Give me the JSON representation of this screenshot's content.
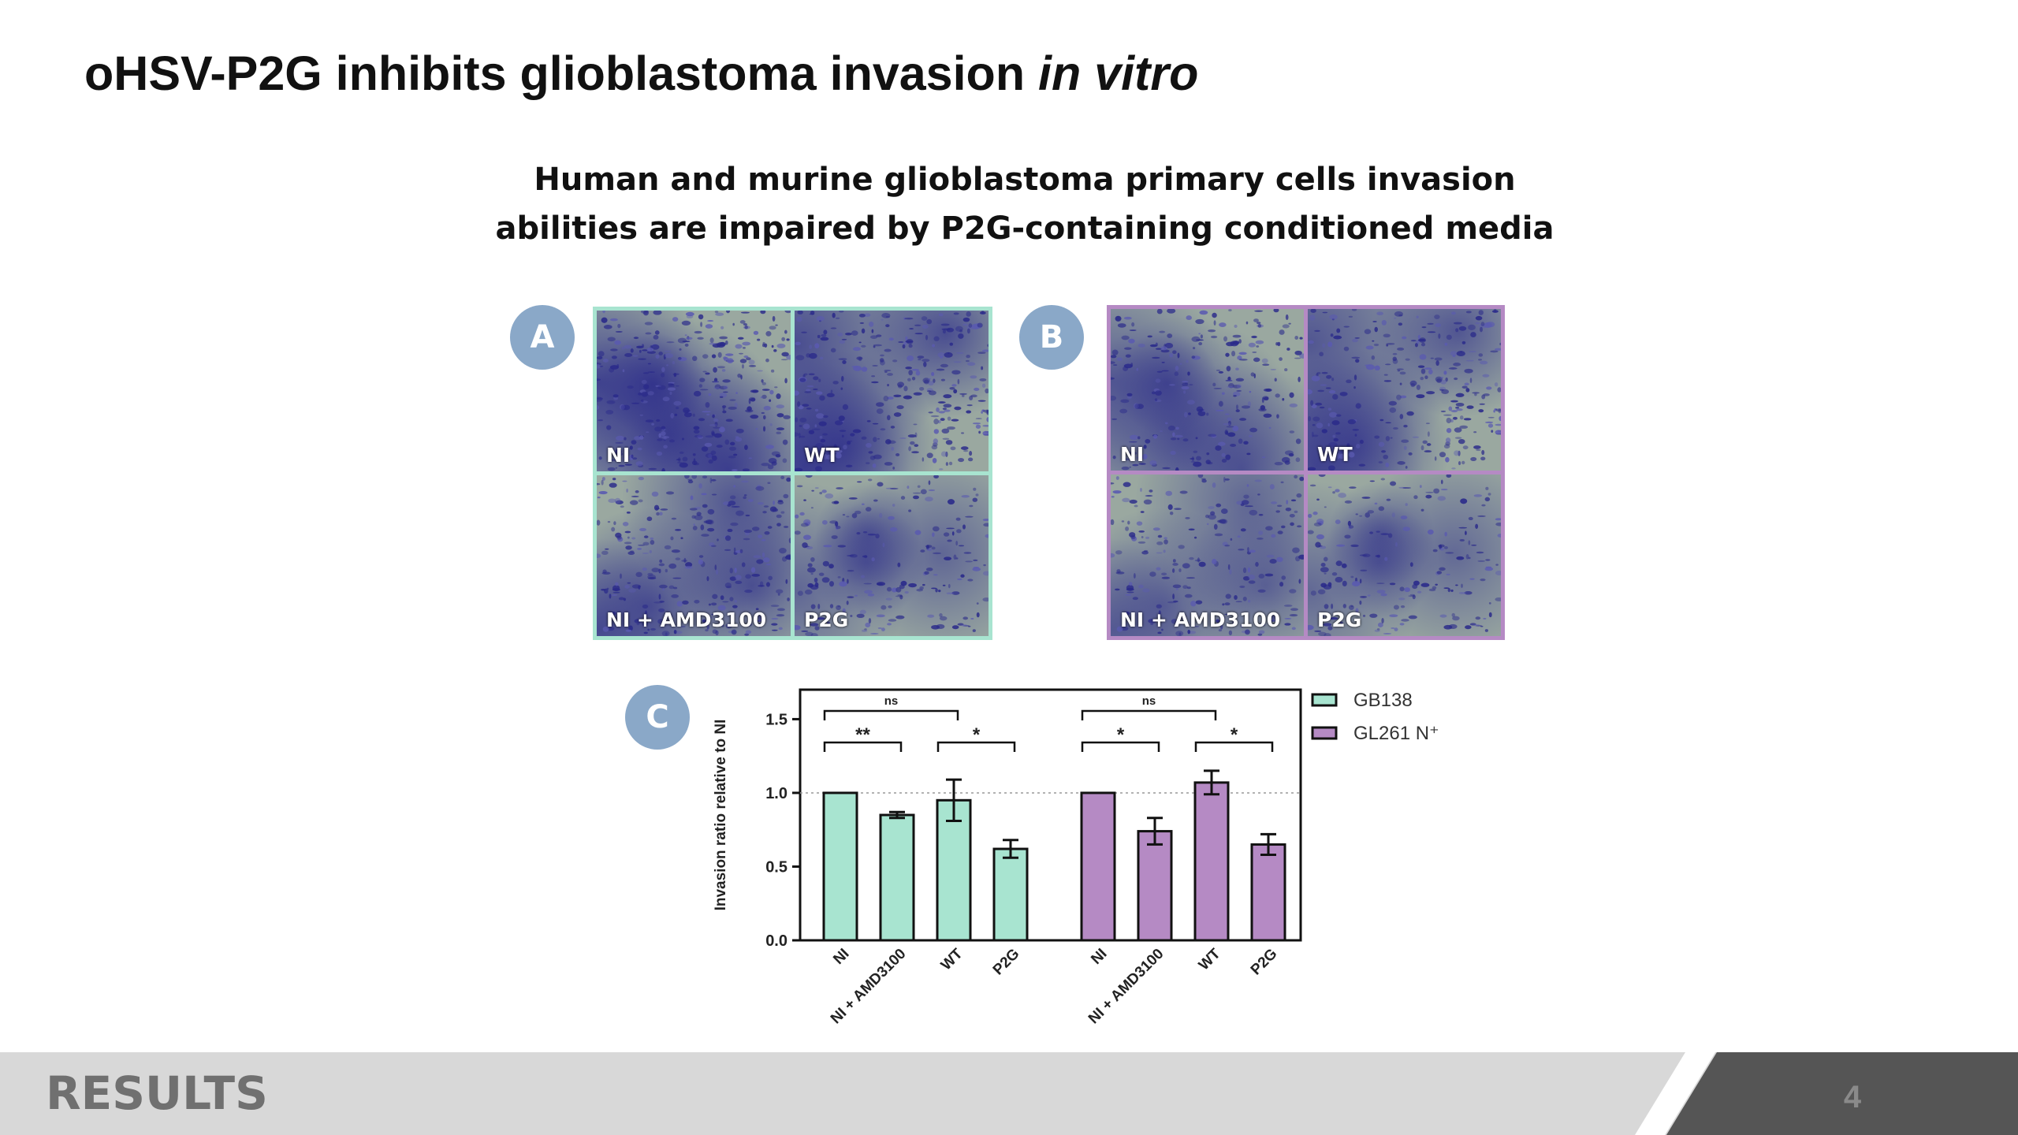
{
  "slide": {
    "title_main": "oHSV-P2G inhibits glioblastoma invasion ",
    "title_italic": "in vitro",
    "subtitle_line1": "Human and murine glioblastoma primary cells invasion",
    "subtitle_line2": "abilities are impaired by P2G-containing conditioned media",
    "footer_label": "RESULTS",
    "page_number": "4"
  },
  "panel_a": {
    "badge": "A",
    "frame_color": "#a8e4d0",
    "images": [
      {
        "label": "NI",
        "density": 0.85
      },
      {
        "label": "WT",
        "density": 0.75
      },
      {
        "label": "NI + AMD3100",
        "density": 0.62
      },
      {
        "label": "P2G",
        "density": 0.35
      }
    ]
  },
  "panel_b": {
    "badge": "B",
    "frame_color": "#b58ac4",
    "images": [
      {
        "label": "NI",
        "density": 0.5
      },
      {
        "label": "WT",
        "density": 0.6
      },
      {
        "label": "NI + AMD3100",
        "density": 0.35
      },
      {
        "label": "P2G",
        "density": 0.3
      }
    ]
  },
  "panel_c": {
    "badge": "C"
  },
  "colors": {
    "gb138": "#a8e4d0",
    "gl261": "#b58ac4",
    "badge": "#8aa8c8",
    "footer_light": "#d8d8d8",
    "footer_dark": "#555555",
    "stain_dark": "#2a2a8a",
    "stain_light": "#9aa8a0"
  },
  "chart_data": {
    "type": "bar",
    "title": "",
    "xlabel": "",
    "ylabel": "Invasion ratio relative to NI",
    "ylim": [
      0,
      1.7
    ],
    "yticks": [
      "0.0",
      "0.5",
      "1.0",
      "1.5"
    ],
    "reference_line": 1.0,
    "categories": [
      "NI",
      "NI + AMD3100",
      "WT",
      "P2G"
    ],
    "legend_position": "right",
    "series": [
      {
        "name": "GB138",
        "values": [
          1.0,
          0.85,
          0.95,
          0.62
        ],
        "errors": [
          0,
          0.02,
          0.14,
          0.06
        ]
      },
      {
        "name": "GL261 N⁺",
        "values": [
          1.0,
          0.74,
          1.07,
          0.65
        ],
        "errors": [
          0,
          0.09,
          0.08,
          0.07
        ]
      }
    ],
    "significance": [
      {
        "series": 0,
        "from": 0,
        "to": 2,
        "label": "ns",
        "level": 1
      },
      {
        "series": 0,
        "from": 0,
        "to": 1,
        "label": "**",
        "level": 0
      },
      {
        "series": 0,
        "from": 2,
        "to": 3,
        "label": "*",
        "level": 0
      },
      {
        "series": 1,
        "from": 0,
        "to": 2,
        "label": "ns",
        "level": 1
      },
      {
        "series": 1,
        "from": 0,
        "to": 1,
        "label": "*",
        "level": 0
      },
      {
        "series": 1,
        "from": 2,
        "to": 3,
        "label": "*",
        "level": 0
      }
    ]
  }
}
